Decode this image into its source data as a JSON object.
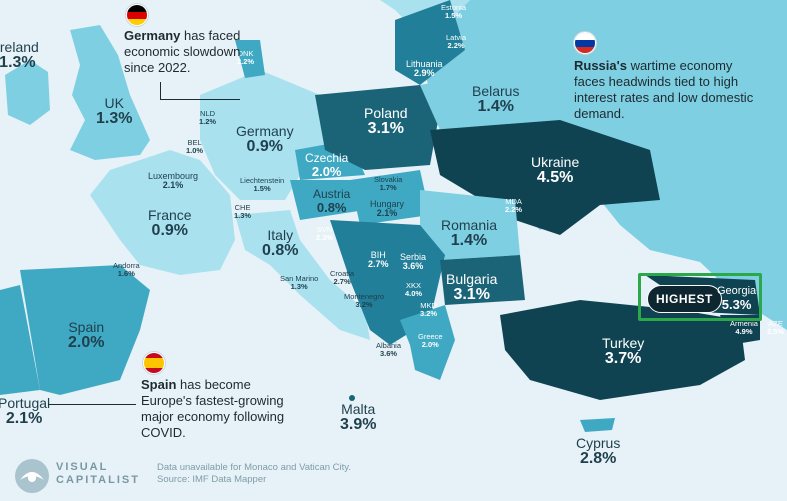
{
  "highest_badge": "HIGHEST",
  "countries": {
    "ireland": {
      "name": "Ireland",
      "value": "1.3%"
    },
    "uk": {
      "name": "UK",
      "value": "1.3%"
    },
    "portugal": {
      "name": "Portugal",
      "value": "2.1%"
    },
    "spain": {
      "name": "Spain",
      "value": "2.0%"
    },
    "france": {
      "name": "France",
      "value": "0.9%"
    },
    "andorra": {
      "name": "Andorra",
      "value": "1.6%"
    },
    "nld": {
      "name": "NLD",
      "value": "1.2%"
    },
    "bel": {
      "name": "BEL",
      "value": "1.0%"
    },
    "luxembourg": {
      "name": "Luxembourg",
      "value": "2.1%"
    },
    "che": {
      "name": "CHE",
      "value": "1.3%"
    },
    "liechtenstein": {
      "name": "Liechtenstein",
      "value": "1.5%"
    },
    "germany": {
      "name": "Germany",
      "value": "0.9%"
    },
    "dnk": {
      "name": "DNK",
      "value": "2.2%"
    },
    "italy": {
      "name": "Italy",
      "value": "0.8%"
    },
    "san_marino": {
      "name": "San Marino",
      "value": "1.3%"
    },
    "malta": {
      "name": "Malta",
      "value": "3.9%"
    },
    "austria": {
      "name": "Austria",
      "value": "0.8%"
    },
    "czechia": {
      "name": "Czechia",
      "value": "2.0%"
    },
    "slovakia": {
      "name": "Slovakia",
      "value": "1.7%"
    },
    "hungary": {
      "name": "Hungary",
      "value": "2.1%"
    },
    "svn": {
      "name": "SVN",
      "value": "2.3%"
    },
    "croatia": {
      "name": "Croatia",
      "value": "2.7%"
    },
    "bih": {
      "name": "BIH",
      "value": "2.7%"
    },
    "montenegro": {
      "name": "Montenegro",
      "value": "3.2%"
    },
    "serbia": {
      "name": "Serbia",
      "value": "3.6%"
    },
    "xkx": {
      "name": "XKX",
      "value": "4.0%"
    },
    "mkd": {
      "name": "MKD",
      "value": "3.2%"
    },
    "albania": {
      "name": "Albania",
      "value": "3.6%"
    },
    "greece": {
      "name": "Greece",
      "value": "2.0%"
    },
    "bulgaria": {
      "name": "Bulgaria",
      "value": "3.1%"
    },
    "romania": {
      "name": "Romania",
      "value": "1.4%"
    },
    "mda": {
      "name": "MDA",
      "value": "2.2%"
    },
    "poland": {
      "name": "Poland",
      "value": "3.1%"
    },
    "ukraine": {
      "name": "Ukraine",
      "value": "4.5%"
    },
    "belarus": {
      "name": "Belarus",
      "value": "1.4%"
    },
    "lithuania": {
      "name": "Lithuania",
      "value": "2.9%"
    },
    "latvia": {
      "name": "Latvia",
      "value": "2.2%"
    },
    "estonia": {
      "name": "Estonia",
      "value": "1.5%"
    },
    "turkey": {
      "name": "Turkey",
      "value": "3.7%"
    },
    "cyprus": {
      "name": "Cyprus",
      "value": "2.8%"
    },
    "georgia": {
      "name": "Georgia",
      "value": "5.3%"
    },
    "armenia": {
      "name": "Armenia",
      "value": "4.9%"
    },
    "aze": {
      "name": "AZE",
      "value": "2.5%"
    }
  },
  "notes": {
    "germany": {
      "bold": "Germany",
      "text": " has faced economic slowdown since 2022."
    },
    "russia": {
      "bold": "Russia's",
      "text": " wartime economy faces headwinds tied to high interest rates and low domestic demand."
    },
    "spain": {
      "bold": "Spain",
      "text": " has become Europe's fastest-growing major economy following COVID."
    }
  },
  "flags": {
    "germany": [
      "#000000",
      "#dd0000",
      "#ffce00"
    ],
    "russia": [
      "#ffffff",
      "#0039a6",
      "#d52b1e"
    ],
    "spain": [
      "#c60b1e",
      "#ffc400",
      "#c60b1e"
    ]
  },
  "colors": {
    "sea": "#e6f2f7",
    "lightest": "#a9e1ef",
    "light": "#7fcfe3",
    "mid": "#3fa9c3",
    "midDark": "#227f99",
    "dark": "#1b6478",
    "darkest": "#0f4352",
    "highlight_border": "#2aa84a"
  },
  "footer": {
    "brand_line1": "VISUAL",
    "brand_line2": "CAPITALIST",
    "source_line1": "Data unavailable for Monaco and Vatican City.",
    "source_line2": "Source: IMF Data Mapper"
  }
}
